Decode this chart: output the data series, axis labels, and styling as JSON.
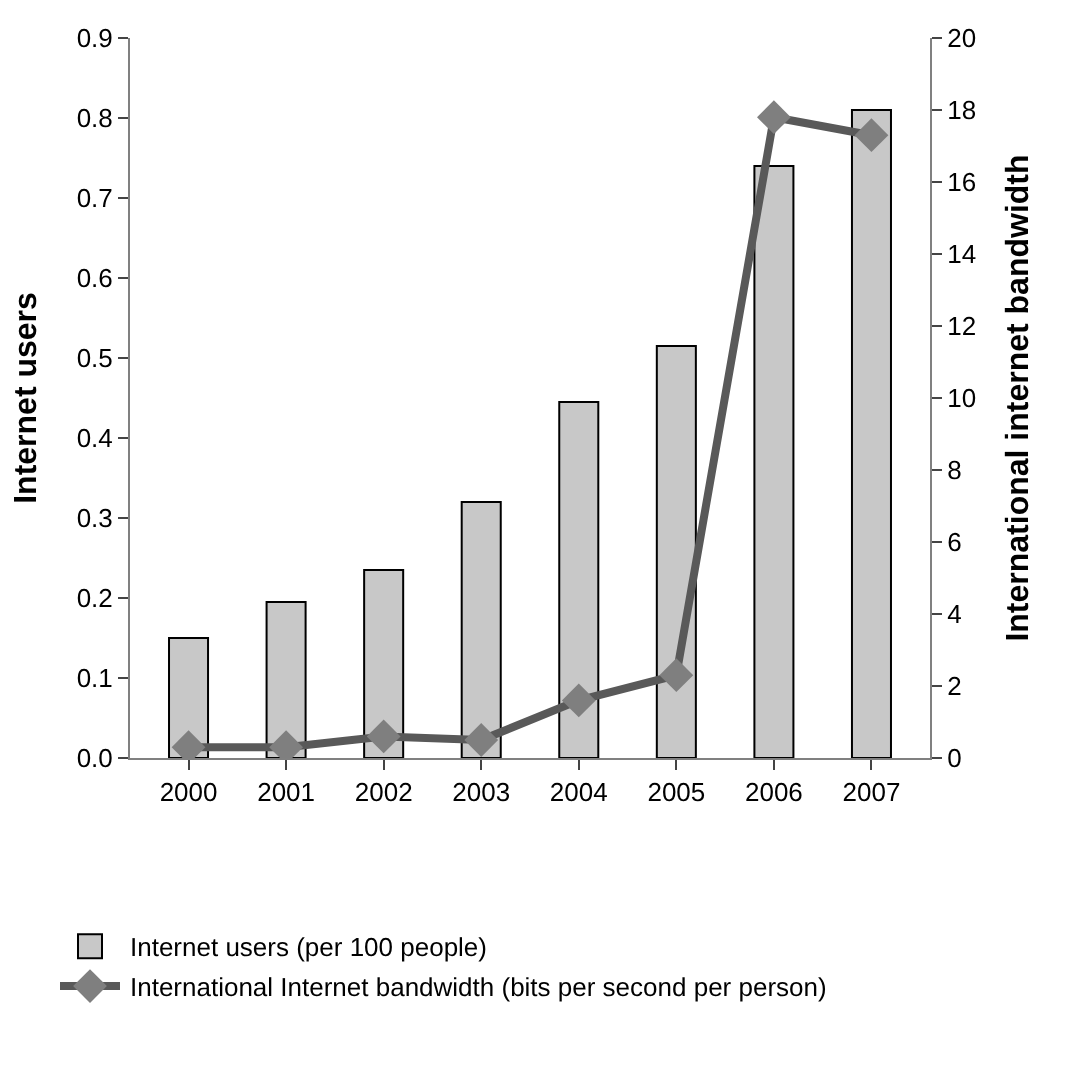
{
  "chart_data": {
    "type": "bar",
    "categories": [
      "2000",
      "2001",
      "2002",
      "2003",
      "2004",
      "2005",
      "2006",
      "2007"
    ],
    "ylabel": "Internet users",
    "y2label": "International internet bandwidth",
    "series": [
      {
        "name": "Internet users (per 100 people)",
        "color": "#c8c8c8",
        "values": [
          0.15,
          0.195,
          0.235,
          0.32,
          0.445,
          0.515,
          0.74,
          0.81
        ]
      },
      {
        "name": "International Internet bandwidth (bits per second per person)",
        "type": "line",
        "axis": "y2",
        "color": "#595959",
        "marker": "diamond",
        "line_style": "solid",
        "values": [
          0.3,
          0.3,
          0.6,
          0.5,
          1.6,
          2.3,
          17.8,
          17.3
        ]
      }
    ],
    "ylim": [
      0,
      0.9
    ],
    "yticks": [
      {
        "value": 0,
        "label": "0.0"
      },
      0.1,
      0.2,
      0.3,
      0.4,
      0.5,
      0.6,
      0.7,
      0.8,
      0.9
    ],
    "y2lim": [
      0,
      20
    ],
    "y2ticks": [
      0,
      2,
      4,
      6,
      8,
      10,
      12,
      14,
      16,
      18,
      20
    ],
    "grid": false,
    "legend": "bottom"
  }
}
